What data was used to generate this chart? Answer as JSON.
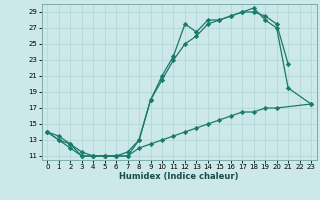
{
  "line1_x": [
    0,
    1,
    2,
    3,
    4,
    5,
    6,
    7,
    8,
    9,
    10,
    11,
    12,
    13,
    14,
    15,
    16,
    17,
    18,
    19,
    20,
    21,
    23
  ],
  "line1_y": [
    14,
    13,
    12.5,
    11,
    11,
    11,
    11,
    11,
    13,
    18,
    21,
    23.5,
    27.5,
    26.5,
    28,
    28,
    28.5,
    29,
    29.5,
    28,
    27,
    19.5,
    17.5
  ],
  "line2_x": [
    0,
    1,
    2,
    3,
    4,
    5,
    6,
    7,
    8,
    9,
    10,
    11,
    12,
    13,
    14,
    15,
    16,
    17,
    18,
    19,
    20,
    21
  ],
  "line2_y": [
    14,
    13.5,
    12.5,
    11.5,
    11,
    11,
    11,
    11.5,
    13,
    18,
    20.5,
    23,
    25,
    26,
    27.5,
    28,
    28.5,
    29,
    29,
    28.5,
    27.5,
    22.5
  ],
  "line3_x": [
    0,
    1,
    2,
    3,
    4,
    5,
    6,
    7,
    8,
    9,
    10,
    11,
    12,
    13,
    14,
    15,
    16,
    17,
    18,
    19,
    20,
    23
  ],
  "line3_y": [
    14,
    13,
    12,
    11,
    11,
    11,
    11,
    11,
    12,
    12.5,
    13,
    13.5,
    14,
    14.5,
    15,
    15.5,
    16,
    16.5,
    16.5,
    17,
    17,
    17.5
  ],
  "color": "#1a7a6a",
  "bg_color": "#cce8e8",
  "grid_color": "#b0d4d4",
  "xlabel": "Humidex (Indice chaleur)",
  "ylim": [
    10.5,
    30
  ],
  "xlim": [
    -0.5,
    23.5
  ],
  "yticks": [
    11,
    13,
    15,
    17,
    19,
    21,
    23,
    25,
    27,
    29
  ],
  "xticks": [
    0,
    1,
    2,
    3,
    4,
    5,
    6,
    7,
    8,
    9,
    10,
    11,
    12,
    13,
    14,
    15,
    16,
    17,
    18,
    19,
    20,
    21,
    22,
    23
  ]
}
